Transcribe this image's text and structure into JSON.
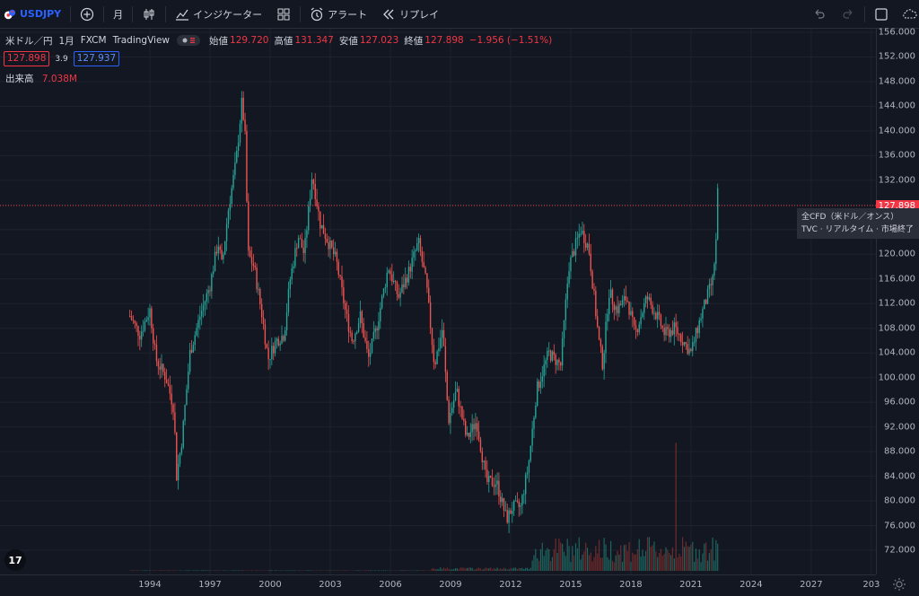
{
  "toolbar": {
    "symbol": "USDJPY",
    "interval": "月",
    "indicators_label": "インジケーター",
    "alert_label": "アラート",
    "replay_label": "リプレイ"
  },
  "legend": {
    "title": "米ドル／円",
    "interval": "1月",
    "source": "FXCM",
    "platform": "TradingView",
    "open_label": "始値",
    "open": "129.720",
    "high_label": "高値",
    "high": "131.347",
    "low_label": "安値",
    "low": "127.023",
    "close_label": "終値",
    "close": "127.898",
    "change": "−1.956 (−1.51%)",
    "bid": "127.898",
    "spread": "3.9",
    "ask": "127.937"
  },
  "volume": {
    "label": "出来高",
    "value": "7.038M"
  },
  "price_axis": {
    "ticks": [
      "156.000",
      "152.000",
      "148.000",
      "144.000",
      "140.000",
      "136.000",
      "132.000",
      "128.000",
      "124.000",
      "120.000",
      "116.000",
      "112.000",
      "108.000",
      "104.000",
      "100.000",
      "96.000",
      "92.000",
      "88.000",
      "84.000",
      "80.000",
      "76.000",
      "72.000"
    ],
    "last_price": "127.898"
  },
  "time_axis": {
    "ticks": [
      "1994",
      "1997",
      "2000",
      "2003",
      "2006",
      "2009",
      "2012",
      "2015",
      "2018",
      "2021",
      "2024",
      "2027",
      "203"
    ]
  },
  "tooltip": {
    "line1": "全CFD（米ドル／オンス）",
    "line2": "TVC · リアルタイム · 市場終了"
  },
  "logo_text": "17",
  "colors": {
    "background": "#131722",
    "up": "#26a69a",
    "down": "#ef5350",
    "accent": "#2962ff",
    "price_line": "#f23645"
  },
  "chart_data": {
    "type": "candlestick",
    "interval": "monthly",
    "y_range": [
      70,
      157.5
    ],
    "x_range": [
      1993.0,
      2032.5
    ],
    "price_points": [
      [
        1993.0,
        110
      ],
      [
        1993.5,
        107
      ],
      [
        1994.0,
        111
      ],
      [
        1994.3,
        103
      ],
      [
        1994.8,
        100
      ],
      [
        1995.2,
        95
      ],
      [
        1995.33,
        84
      ],
      [
        1995.6,
        90
      ],
      [
        1996.0,
        104
      ],
      [
        1996.5,
        110
      ],
      [
        1997.0,
        115
      ],
      [
        1997.4,
        122
      ],
      [
        1997.6,
        118
      ],
      [
        1997.9,
        127
      ],
      [
        1998.3,
        135
      ],
      [
        1998.6,
        145
      ],
      [
        1998.75,
        139
      ],
      [
        1998.9,
        120
      ],
      [
        1999.2,
        118
      ],
      [
        1999.6,
        110
      ],
      [
        1999.9,
        103
      ],
      [
        2000.3,
        106
      ],
      [
        2000.7,
        107
      ],
      [
        2001.0,
        116
      ],
      [
        2001.4,
        123
      ],
      [
        2001.7,
        120
      ],
      [
        2002.1,
        133
      ],
      [
        2002.5,
        125
      ],
      [
        2002.9,
        122
      ],
      [
        2003.3,
        119
      ],
      [
        2003.8,
        110
      ],
      [
        2004.1,
        106
      ],
      [
        2004.5,
        110
      ],
      [
        2004.9,
        103
      ],
      [
        2005.3,
        108
      ],
      [
        2005.9,
        118
      ],
      [
        2006.4,
        113
      ],
      [
        2006.9,
        117
      ],
      [
        2007.4,
        122
      ],
      [
        2007.8,
        115
      ],
      [
        2008.2,
        102
      ],
      [
        2008.6,
        108
      ],
      [
        2008.9,
        93
      ],
      [
        2009.3,
        98
      ],
      [
        2009.8,
        90
      ],
      [
        2010.3,
        93
      ],
      [
        2010.8,
        83
      ],
      [
        2011.3,
        83
      ],
      [
        2011.8,
        77
      ],
      [
        2012.1,
        79
      ],
      [
        2012.5,
        79
      ],
      [
        2012.9,
        86
      ],
      [
        2013.3,
        98
      ],
      [
        2013.9,
        104
      ],
      [
        2014.5,
        102
      ],
      [
        2014.9,
        118
      ],
      [
        2015.5,
        124
      ],
      [
        2015.9,
        121
      ],
      [
        2016.4,
        106
      ],
      [
        2016.6,
        102
      ],
      [
        2016.9,
        114
      ],
      [
        2017.3,
        111
      ],
      [
        2017.8,
        113
      ],
      [
        2018.2,
        107
      ],
      [
        2018.8,
        113
      ],
      [
        2019.3,
        110
      ],
      [
        2019.7,
        107
      ],
      [
        2020.2,
        108
      ],
      [
        2020.8,
        105
      ],
      [
        2021.0,
        104
      ],
      [
        2021.5,
        110
      ],
      [
        2021.9,
        114
      ],
      [
        2022.1,
        116
      ],
      [
        2022.25,
        122
      ],
      [
        2022.33,
        130
      ],
      [
        2022.4,
        127.9
      ]
    ],
    "volume_series": "monthly volume bars near bottom, small before 2008, larger after 2013, spike in 2020"
  }
}
